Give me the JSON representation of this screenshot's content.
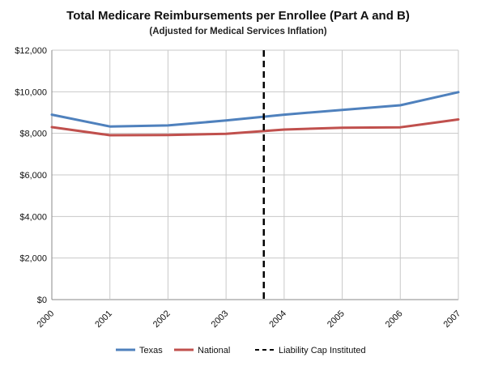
{
  "chart_data": {
    "type": "line",
    "title": "Total Medicare Reimbursements per Enrollee (Part A and B)",
    "subtitle": "(Adjusted for Medical Services Inflation)",
    "x": [
      "2000",
      "2001",
      "2002",
      "2003",
      "2004",
      "2005",
      "2006",
      "2007"
    ],
    "ylim": [
      0,
      12000
    ],
    "y_ticks": [
      0,
      2000,
      4000,
      6000,
      8000,
      10000,
      12000
    ],
    "y_tick_labels": [
      "$0",
      "$2,000",
      "$4,000",
      "$6,000",
      "$8,000",
      "$10,000",
      "$12,000"
    ],
    "grid": true,
    "legend_position": "bottom",
    "series": [
      {
        "name": "Texas",
        "color": "#4f81bd",
        "values": [
          8900,
          8330,
          8380,
          8620,
          8900,
          9130,
          9350,
          9980
        ]
      },
      {
        "name": "National",
        "color": "#c0504d",
        "values": [
          8300,
          7910,
          7920,
          7980,
          8180,
          8270,
          8290,
          8670
        ]
      }
    ],
    "vertical_marker": {
      "name": "Liability Cap Instituted",
      "x": 3.65,
      "style": "dashed",
      "color": "#000000"
    }
  }
}
